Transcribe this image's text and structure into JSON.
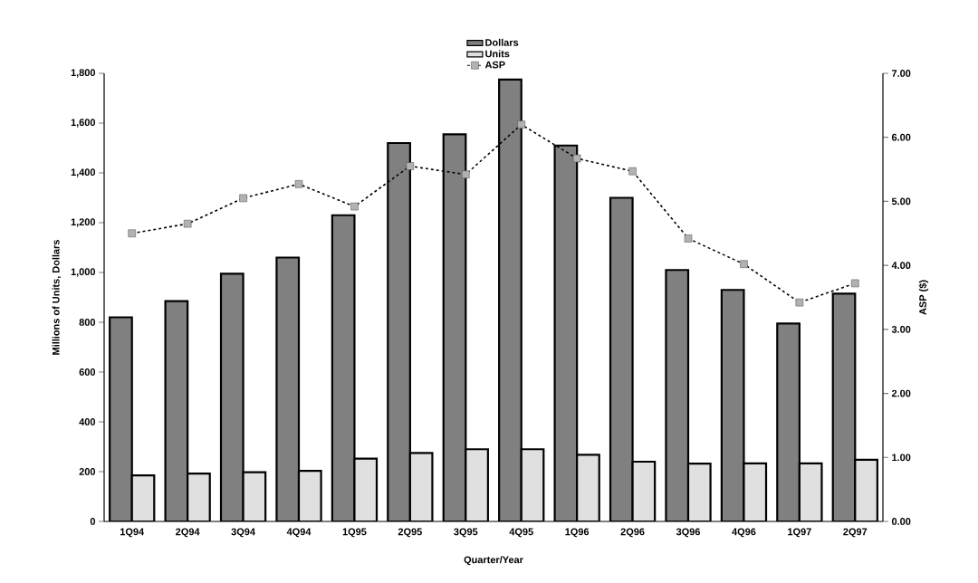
{
  "chart_data": {
    "type": "bar",
    "categories": [
      "1Q94",
      "2Q94",
      "3Q94",
      "4Q94",
      "1Q95",
      "2Q95",
      "3Q95",
      "4Q95",
      "1Q96",
      "2Q96",
      "3Q96",
      "4Q96",
      "1Q97",
      "2Q97"
    ],
    "series": [
      {
        "name": "Dollars",
        "type": "bar",
        "color": "#808080",
        "values": [
          820,
          885,
          995,
          1060,
          1230,
          1520,
          1555,
          1775,
          1510,
          1300,
          1010,
          930,
          795,
          915
        ]
      },
      {
        "name": "Units",
        "type": "bar",
        "color": "#e0e0e0",
        "values": [
          185,
          192,
          198,
          203,
          252,
          275,
          290,
          290,
          268,
          240,
          232,
          233,
          233,
          248
        ]
      },
      {
        "name": "ASP",
        "type": "line",
        "axis": "y2",
        "color": "#000000",
        "values": [
          4.5,
          4.65,
          5.05,
          5.27,
          4.92,
          5.55,
          5.42,
          6.2,
          5.67,
          5.47,
          4.42,
          4.02,
          3.42,
          3.72
        ]
      }
    ],
    "xlabel": "Quarter/Year",
    "ylabel": "Millions of Units, Dollars",
    "y2label": "ASP ($)",
    "ylim": [
      0,
      1800
    ],
    "yticks": [
      0,
      {
        "value": 200,
        "label": "200"
      },
      400,
      600,
      800,
      {
        "value": 1000,
        "label": "1,000"
      },
      {
        "value": 1200,
        "label": "1,200"
      },
      {
        "value": 1400,
        "label": "1,400"
      },
      {
        "value": 1600,
        "label": "1,600"
      },
      {
        "value": 1800,
        "label": "1,800"
      }
    ],
    "y2lim": [
      0,
      7
    ],
    "y2ticks": [
      {
        "value": 0,
        "label": "0.00"
      },
      {
        "value": 1,
        "label": "1.00"
      },
      {
        "value": 2,
        "label": "2.00"
      },
      {
        "value": 3,
        "label": "3.00"
      },
      {
        "value": 4,
        "label": "4.00"
      },
      {
        "value": 5,
        "label": "5.00"
      },
      {
        "value": 6,
        "label": "6.00"
      },
      {
        "value": 7,
        "label": "7.00"
      }
    ],
    "legend": "top",
    "marker": "square",
    "line_style": "dashed"
  }
}
